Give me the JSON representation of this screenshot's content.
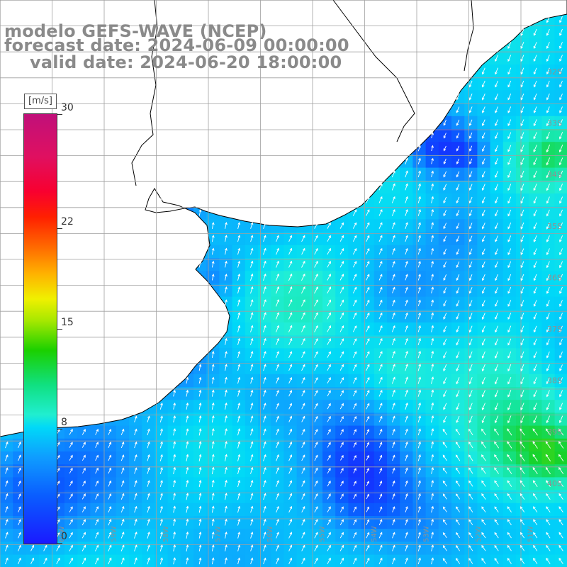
{
  "title": {
    "line1": "modelo GEFS-WAVE (NCEP)",
    "line2": "forecast date: 2024-06-09 00:00:00",
    "line3": "valid date: 2024-06-20 18:00:00"
  },
  "colorbar": {
    "unit": "[m/s]",
    "ticks": [
      {
        "value": 30,
        "label": "30"
      },
      {
        "value": 22,
        "label": "22"
      },
      {
        "value": 15,
        "label": "15"
      },
      {
        "value": 8,
        "label": "8"
      },
      {
        "value": 0,
        "label": "0"
      }
    ],
    "range": [
      0,
      30
    ]
  },
  "map": {
    "land_color": "#ffffff",
    "grid_color": "#a0a0a0",
    "lat_labels": [
      "32S",
      "33S",
      "34S",
      "35S",
      "36S",
      "37S",
      "38S",
      "39S",
      "40S"
    ],
    "lon_labels": [
      "60W",
      "59W",
      "58W",
      "57W",
      "56W",
      "55W",
      "54W",
      "53W",
      "52W",
      "51W"
    ]
  }
}
